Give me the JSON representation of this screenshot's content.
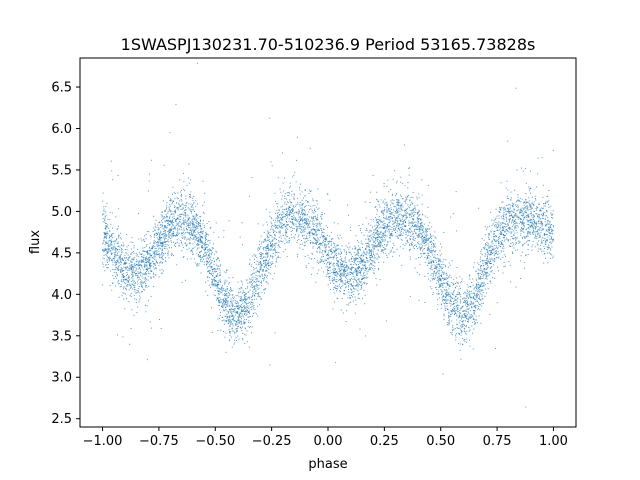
{
  "chart_data": {
    "type": "scatter",
    "title": "1SWASPJ130231.70-510236.9 Period 53165.73828s",
    "xlabel": "phase",
    "ylabel": "flux",
    "xlim": [
      -1.1,
      1.1
    ],
    "ylim": [
      2.4,
      6.85
    ],
    "xticks": [
      -1.0,
      -0.75,
      -0.5,
      -0.25,
      0.0,
      0.25,
      0.5,
      0.75,
      1.0
    ],
    "xtick_labels": [
      "−1.00",
      "−0.75",
      "−0.50",
      "−0.25",
      "0.00",
      "0.25",
      "0.50",
      "0.75",
      "1.00"
    ],
    "yticks": [
      2.5,
      3.0,
      3.5,
      4.0,
      4.5,
      5.0,
      5.5,
      6.0,
      6.5
    ],
    "ytick_labels": [
      "2.5",
      "3.0",
      "3.5",
      "4.0",
      "4.5",
      "5.0",
      "5.5",
      "6.0",
      "6.5"
    ],
    "grid": false,
    "marker_color": "#1f77b4",
    "series": [
      {
        "x": [
          -1.0,
          -0.95,
          -0.9,
          -0.85,
          -0.8,
          -0.75,
          -0.7,
          -0.65,
          -0.6,
          -0.55,
          -0.5,
          -0.45,
          -0.4,
          -0.35,
          -0.3,
          -0.25,
          -0.2,
          -0.15,
          -0.1,
          -0.05,
          0.0,
          0.05,
          0.1,
          0.15,
          0.2,
          0.25,
          0.3,
          0.35,
          0.4,
          0.45,
          0.5,
          0.55,
          0.6,
          0.65,
          0.7,
          0.75,
          0.8,
          0.85,
          0.9,
          0.95,
          1.0
        ],
        "y": [
          4.75,
          4.5,
          4.3,
          4.25,
          4.35,
          4.6,
          4.85,
          4.9,
          4.85,
          4.6,
          4.2,
          3.85,
          3.75,
          3.9,
          4.3,
          4.65,
          4.9,
          4.95,
          4.9,
          4.75,
          4.45,
          4.3,
          4.25,
          4.35,
          4.6,
          4.8,
          4.9,
          4.9,
          4.8,
          4.55,
          4.2,
          3.85,
          3.75,
          3.95,
          4.35,
          4.7,
          4.85,
          4.9,
          4.9,
          4.85,
          4.75
        ]
      }
    ]
  }
}
